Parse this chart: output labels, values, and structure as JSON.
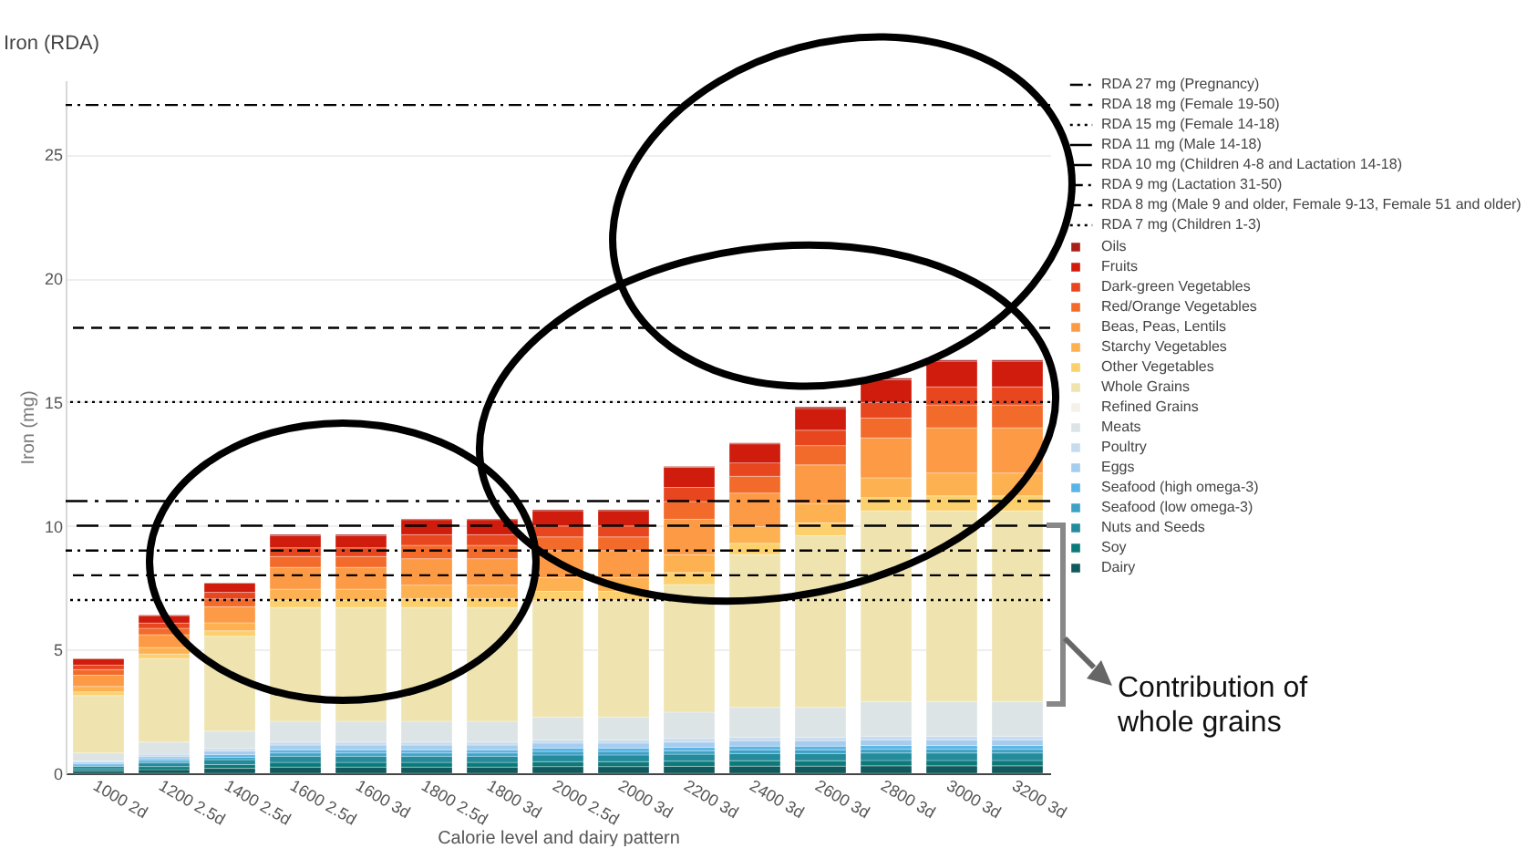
{
  "chart_data": {
    "type": "bar",
    "stacked": true,
    "title": "Iron (RDA)",
    "xlabel": "Calorie level and dairy pattern",
    "ylabel": "Iron (mg)",
    "categories": [
      "1000 2d",
      "1200 2.5d",
      "1400 2.5d",
      "1600 2.5d",
      "1600 3d",
      "1800 2.5d",
      "1800 3d",
      "2000 2.5d",
      "2000 3d",
      "2200 3d",
      "2400 3d",
      "2600 3d",
      "2800 3d",
      "3000 3d",
      "3200 3d"
    ],
    "ylim": [
      0,
      28
    ],
    "yticks": [
      0,
      5,
      10,
      15,
      20,
      25
    ],
    "grid": "y",
    "legend": "right",
    "series": [
      {
        "name": "Dairy",
        "color": "#11595c",
        "values": [
          0.1,
          0.15,
          0.2,
          0.25,
          0.25,
          0.25,
          0.25,
          0.27,
          0.27,
          0.28,
          0.29,
          0.29,
          0.3,
          0.3,
          0.3
        ]
      },
      {
        "name": "Soy",
        "color": "#0d7a7a",
        "values": [
          0.08,
          0.12,
          0.15,
          0.19,
          0.19,
          0.19,
          0.19,
          0.2,
          0.2,
          0.21,
          0.22,
          0.22,
          0.22,
          0.22,
          0.22
        ]
      },
      {
        "name": "Nuts and Seeds",
        "color": "#238b9c",
        "values": [
          0.1,
          0.15,
          0.2,
          0.25,
          0.25,
          0.25,
          0.25,
          0.27,
          0.27,
          0.28,
          0.29,
          0.29,
          0.3,
          0.3,
          0.3
        ]
      },
      {
        "name": "Seafood (low omega-3)",
        "color": "#3da2c6",
        "values": [
          0.05,
          0.08,
          0.1,
          0.13,
          0.13,
          0.13,
          0.13,
          0.14,
          0.14,
          0.14,
          0.15,
          0.15,
          0.15,
          0.15,
          0.15
        ]
      },
      {
        "name": "Seafood (high omega-3)",
        "color": "#5ab4e5",
        "values": [
          0.05,
          0.08,
          0.1,
          0.13,
          0.13,
          0.13,
          0.13,
          0.14,
          0.14,
          0.14,
          0.15,
          0.15,
          0.15,
          0.15,
          0.15
        ]
      },
      {
        "name": "Eggs",
        "color": "#a6cdee",
        "values": [
          0.07,
          0.11,
          0.15,
          0.19,
          0.19,
          0.19,
          0.19,
          0.2,
          0.2,
          0.21,
          0.22,
          0.22,
          0.23,
          0.23,
          0.23
        ]
      },
      {
        "name": "Poultry",
        "color": "#c7dcef",
        "values": [
          0.05,
          0.08,
          0.1,
          0.12,
          0.12,
          0.12,
          0.12,
          0.13,
          0.13,
          0.14,
          0.13,
          0.13,
          0.15,
          0.15,
          0.15
        ]
      },
      {
        "name": "Meats",
        "color": "#dde4e6",
        "values": [
          0.32,
          0.49,
          0.7,
          0.84,
          0.84,
          0.84,
          0.84,
          0.92,
          0.92,
          1.07,
          1.21,
          1.21,
          1.4,
          1.4,
          1.4
        ]
      },
      {
        "name": "Refined Grains",
        "color": "#f4f2e8",
        "values": [
          null,
          null,
          null,
          null,
          null,
          null,
          null,
          null,
          null,
          null,
          null,
          null,
          null,
          null,
          null
        ]
      },
      {
        "name": "Whole Grains",
        "color": "#efe4b0",
        "values": [
          2.32,
          3.38,
          3.84,
          4.6,
          4.6,
          4.6,
          4.6,
          4.71,
          4.71,
          5.16,
          6.18,
          6.94,
          7.7,
          7.7,
          7.7
        ]
      },
      {
        "name": "Other Vegetables",
        "color": "#fdd06e",
        "values": [
          0.15,
          0.18,
          0.22,
          0.3,
          0.3,
          0.36,
          0.36,
          0.37,
          0.37,
          0.48,
          0.45,
          0.52,
          0.54,
          0.61,
          0.61
        ]
      },
      {
        "name": "Starchy Vegetables",
        "color": "#fdb151",
        "values": [
          0.22,
          0.26,
          0.32,
          0.44,
          0.44,
          0.54,
          0.54,
          0.55,
          0.55,
          0.72,
          0.68,
          0.78,
          0.8,
          0.92,
          0.92
        ]
      },
      {
        "name": "Beas, Peas, Lentils",
        "color": "#fd9a45",
        "values": [
          0.45,
          0.52,
          0.65,
          0.88,
          0.88,
          1.07,
          1.07,
          1.1,
          1.1,
          1.43,
          1.35,
          1.56,
          1.61,
          1.83,
          1.83
        ]
      },
      {
        "name": "Red/Orange Vegetables",
        "color": "#f36b2b",
        "values": [
          0.23,
          0.26,
          0.32,
          0.44,
          0.44,
          0.54,
          0.54,
          0.55,
          0.55,
          0.72,
          0.68,
          0.78,
          0.8,
          0.92,
          0.92
        ]
      },
      {
        "name": "Dark-green Vegetables",
        "color": "#e8461f",
        "values": [
          0.18,
          0.21,
          0.26,
          0.35,
          0.35,
          0.43,
          0.43,
          0.44,
          0.44,
          0.57,
          0.54,
          0.62,
          0.64,
          0.73,
          0.73
        ]
      },
      {
        "name": "Fruits",
        "color": "#d01c0c",
        "values": [
          0.26,
          0.3,
          0.37,
          0.5,
          0.5,
          0.61,
          0.61,
          0.62,
          0.62,
          0.81,
          0.77,
          0.88,
          0.91,
          1.04,
          1.04
        ]
      },
      {
        "name": "Oils",
        "color": "#a8201a",
        "values": [
          0.01,
          0.02,
          0.02,
          0.04,
          0.04,
          0.03,
          0.03,
          0.04,
          0.04,
          0.04,
          0.04,
          0.06,
          0.06,
          0.05,
          0.05
        ]
      }
    ],
    "ref_lines": [
      {
        "axis": "y",
        "value": 27,
        "label": "RDA 27 mg (Pregnancy)",
        "color": "#000000",
        "line_style": "dashdot"
      },
      {
        "axis": "y",
        "value": 18,
        "label": "RDA 18 mg (Female 19-50)",
        "color": "#000000",
        "line_style": "dashed"
      },
      {
        "axis": "y",
        "value": 15,
        "label": "RDA 15 mg (Female 14-18)",
        "color": "#000000",
        "line_style": "dotted"
      },
      {
        "axis": "y",
        "value": 11,
        "label": "RDA 11 mg (Male 14-18)",
        "color": "#000000",
        "line_style": "longdashdot"
      },
      {
        "axis": "y",
        "value": 10,
        "label": "RDA 10 mg (Children 4-8 and Lactation 14-18)",
        "color": "#000000",
        "line_style": "longdash"
      },
      {
        "axis": "y",
        "value": 9,
        "label": "RDA 9 mg (Lactation 31-50)",
        "color": "#000000",
        "line_style": "dashdot"
      },
      {
        "axis": "y",
        "value": 8,
        "label": "RDA 8 mg (Male 9 and older, Female 9-13, Female 51 and older)",
        "color": "#000000",
        "line_style": "dashed"
      },
      {
        "axis": "y",
        "value": 7,
        "label": "RDA 7 mg (Children 1-3)",
        "color": "#000000",
        "line_style": "dotted"
      }
    ],
    "annotations": [
      "Contribution of whole grains"
    ]
  }
}
